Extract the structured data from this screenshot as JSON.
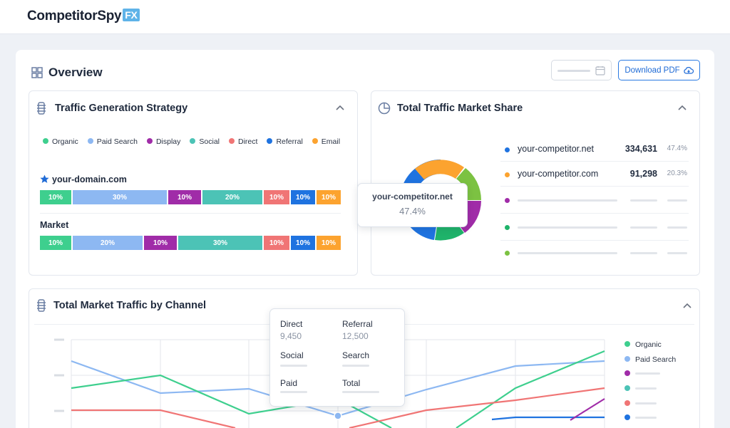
{
  "brand": {
    "name": "CompetitorSpy",
    "badge": "FX"
  },
  "overview": {
    "title": "Overview",
    "download_label": "Download PDF"
  },
  "colors": {
    "organic": "#3ecf8e",
    "paid_search": "#8db8f2",
    "display": "#a02ca8",
    "social": "#4cc3b6",
    "direct": "#f07575",
    "referral": "#1f73e0",
    "email": "#fca32f",
    "lime": "#7cc242",
    "accent": "#2a7ae2"
  },
  "traffic_strategy": {
    "title": "Traffic Generation Strategy",
    "legend": [
      "Organic",
      "Paid Search",
      "Display",
      "Social",
      "Direct",
      "Referral",
      "Email"
    ],
    "rows": [
      {
        "label": "your-domain.com",
        "starred": true,
        "values": [
          "10%",
          "30%",
          "10%",
          "20%",
          "10%",
          "10%",
          "10%"
        ]
      },
      {
        "label": "Market",
        "starred": false,
        "values": [
          "10%",
          "20%",
          "10%",
          "30%",
          "10%",
          "10%",
          "10%"
        ]
      }
    ]
  },
  "market_share": {
    "title": "Total Traffic Market Share",
    "tooltip": {
      "name": "your-competitor.net",
      "value": "47.4%"
    },
    "items": [
      {
        "name": "your-competitor.net",
        "value": "334,631",
        "pct": "47.4%"
      },
      {
        "name": "your-competitor.com",
        "value": "91,298",
        "pct": "20.3%"
      }
    ]
  },
  "channel_chart": {
    "title": "Total Market Traffic by Channel",
    "tooltip": {
      "direct_label": "Direct",
      "direct_value": "9,450",
      "referral_label": "Referral",
      "referral_value": "12,500",
      "social_label": "Social",
      "search_label": "Search",
      "paid_label": "Paid",
      "total_label": "Total"
    },
    "legend": [
      "Organic",
      "Paid Search"
    ]
  }
}
